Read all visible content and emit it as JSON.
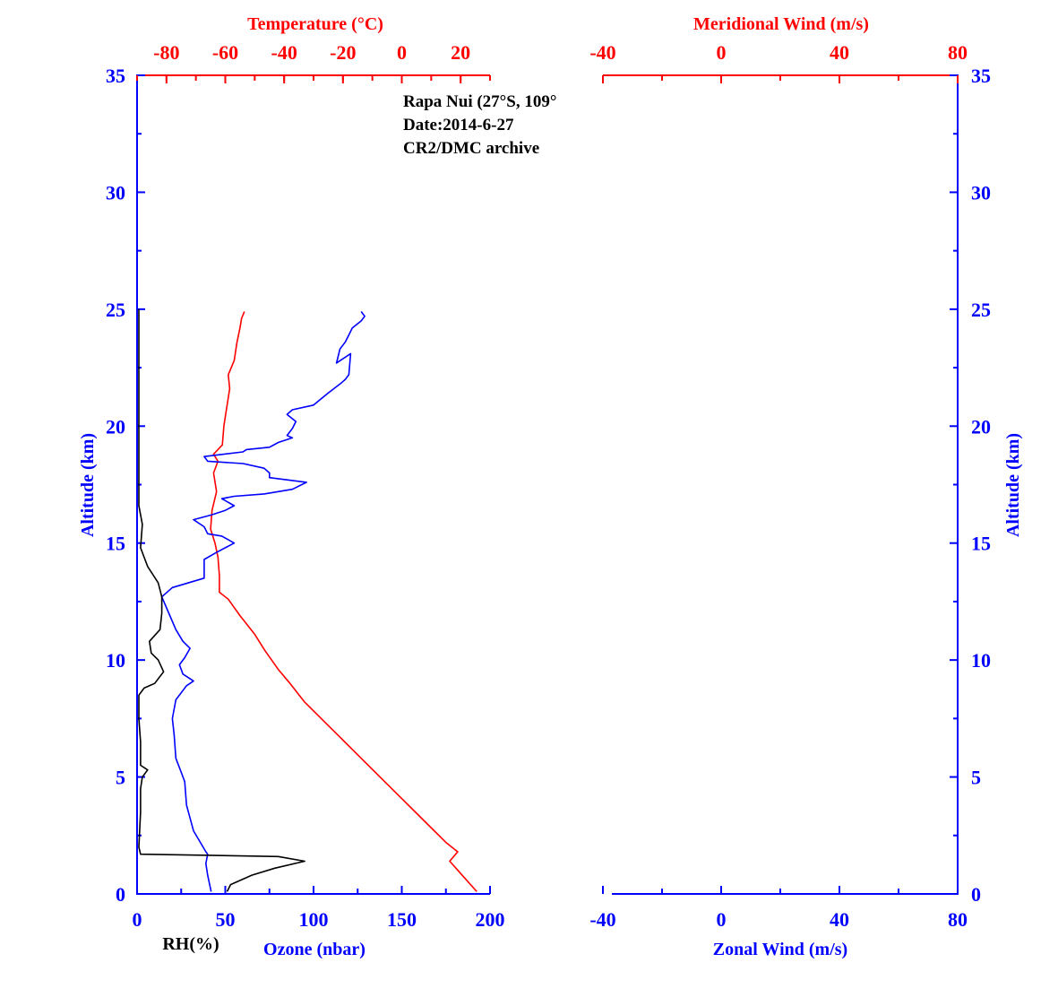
{
  "colors": {
    "blue": "#0000ff",
    "red": "#ff0000",
    "black": "#000000"
  },
  "annotations": [
    "Rapa Nui (27°S, 109°",
    "Date:2014-6-27",
    "CR2/DMC archive"
  ],
  "chart_data": [
    {
      "type": "line",
      "panel": "left",
      "ylabel": "Altitude (km)",
      "ylim": [
        0,
        35
      ],
      "yticks": [
        "0",
        "5",
        "10",
        "15",
        "20",
        "25",
        "30",
        "35"
      ],
      "bottom_axis": {
        "label": "Ozone (nbar)",
        "extra_label": "RH(%)",
        "xlim": [
          0,
          200
        ],
        "ticks": [
          "0",
          "50",
          "100",
          "150",
          "200"
        ]
      },
      "top_axis": {
        "label": "Temperature (°C)",
        "xlim": [
          -90,
          30
        ],
        "ticks": [
          "-80",
          "-60",
          "-40",
          "-20",
          "0",
          "20"
        ]
      },
      "series": [
        {
          "name": "Temperature",
          "axis": "top",
          "color": "red",
          "points": [
            [
              25.5,
              0.1
            ],
            [
              16.3,
              1.4
            ],
            [
              19.0,
              1.8
            ],
            [
              15.0,
              2.2
            ],
            [
              7.0,
              3.2
            ],
            [
              -1.0,
              4.2
            ],
            [
              -9.0,
              5.2
            ],
            [
              -17.0,
              6.2
            ],
            [
              -25.0,
              7.2
            ],
            [
              -33.0,
              8.2
            ],
            [
              -38.0,
              9.0
            ],
            [
              -42.0,
              9.6
            ],
            [
              -46.5,
              10.4
            ],
            [
              -50.0,
              11.1
            ],
            [
              -55.0,
              11.9
            ],
            [
              -59.0,
              12.6
            ],
            [
              -62.0,
              12.9
            ],
            [
              -62.0,
              13.6
            ],
            [
              -62.5,
              14.4
            ],
            [
              -63.5,
              15.0
            ],
            [
              -65.0,
              15.6
            ],
            [
              -64.5,
              16.4
            ],
            [
              -63.0,
              17.2
            ],
            [
              -64.0,
              18.0
            ],
            [
              -62.5,
              18.5
            ],
            [
              -64.0,
              18.8
            ],
            [
              -61.0,
              19.2
            ],
            [
              -60.5,
              20.0
            ],
            [
              -59.5,
              20.8
            ],
            [
              -58.5,
              21.6
            ],
            [
              -59.0,
              22.2
            ],
            [
              -57.0,
              22.8
            ],
            [
              -56.0,
              23.6
            ],
            [
              -55.0,
              24.2
            ],
            [
              -54.5,
              24.6
            ],
            [
              -53.5,
              24.9
            ]
          ]
        },
        {
          "name": "Ozone",
          "axis": "bottom",
          "color": "blue",
          "points": [
            [
              42,
              0.1
            ],
            [
              40,
              0.8
            ],
            [
              39,
              1.3
            ],
            [
              40,
              1.7
            ],
            [
              39,
              1.8
            ],
            [
              32,
              2.7
            ],
            [
              28,
              3.8
            ],
            [
              27,
              4.8
            ],
            [
              25,
              5.2
            ],
            [
              22,
              5.8
            ],
            [
              21,
              6.8
            ],
            [
              20,
              7.5
            ],
            [
              22,
              8.3
            ],
            [
              28,
              8.9
            ],
            [
              32,
              9.1
            ],
            [
              26,
              9.4
            ],
            [
              24,
              9.8
            ],
            [
              27,
              10.1
            ],
            [
              30,
              10.5
            ],
            [
              26,
              10.8
            ],
            [
              22,
              11.3
            ],
            [
              18,
              12.0
            ],
            [
              14,
              12.7
            ],
            [
              20,
              13.1
            ],
            [
              38,
              13.5
            ],
            [
              38,
              14.3
            ],
            [
              45,
              14.6
            ],
            [
              55,
              15.0
            ],
            [
              48,
              15.3
            ],
            [
              40,
              15.4
            ],
            [
              38,
              15.7
            ],
            [
              32,
              16.0
            ],
            [
              42,
              16.2
            ],
            [
              50,
              16.4
            ],
            [
              55,
              16.6
            ],
            [
              48,
              16.9
            ],
            [
              55,
              17.0
            ],
            [
              72,
              17.1
            ],
            [
              88,
              17.3
            ],
            [
              96,
              17.6
            ],
            [
              75,
              17.8
            ],
            [
              75,
              18.0
            ],
            [
              72,
              18.2
            ],
            [
              60,
              18.4
            ],
            [
              40,
              18.5
            ],
            [
              38,
              18.7
            ],
            [
              60,
              18.9
            ],
            [
              62,
              19.0
            ],
            [
              75,
              19.1
            ],
            [
              80,
              19.3
            ],
            [
              88,
              19.5
            ],
            [
              85,
              19.6
            ],
            [
              88,
              19.9
            ],
            [
              90,
              20.2
            ],
            [
              85,
              20.5
            ],
            [
              88,
              20.7
            ],
            [
              100,
              20.9
            ],
            [
              108,
              21.4
            ],
            [
              115,
              21.8
            ],
            [
              118,
              22.0
            ],
            [
              120,
              22.2
            ],
            [
              121,
              23.1
            ],
            [
              113,
              22.7
            ],
            [
              115,
              23.3
            ],
            [
              118,
              23.6
            ],
            [
              120,
              23.9
            ],
            [
              122,
              24.2
            ],
            [
              127,
              24.5
            ],
            [
              129,
              24.7
            ],
            [
              127,
              24.9
            ]
          ]
        },
        {
          "name": "RH",
          "axis": "bottom",
          "color": "black",
          "points": [
            [
              51,
              0.1
            ],
            [
              53,
              0.4
            ],
            [
              65,
              0.8
            ],
            [
              78,
              1.1
            ],
            [
              95,
              1.4
            ],
            [
              80,
              1.6
            ],
            [
              2,
              1.7
            ],
            [
              1,
              2.0
            ],
            [
              2,
              3.5
            ],
            [
              2,
              4.5
            ],
            [
              3,
              5.0
            ],
            [
              6,
              5.3
            ],
            [
              2,
              5.5
            ],
            [
              2,
              6.5
            ],
            [
              1,
              7.5
            ],
            [
              1,
              8.5
            ],
            [
              4,
              8.8
            ],
            [
              10,
              9.0
            ],
            [
              15,
              9.5
            ],
            [
              12,
              10.0
            ],
            [
              8,
              10.3
            ],
            [
              7,
              10.8
            ],
            [
              13,
              11.3
            ],
            [
              14,
              12.0
            ],
            [
              14,
              12.7
            ],
            [
              12,
              13.3
            ],
            [
              6,
              14.0
            ],
            [
              2,
              14.8
            ],
            [
              3,
              15.8
            ],
            [
              1,
              16.6
            ],
            [
              1,
              18.0
            ],
            [
              1,
              25.0
            ]
          ]
        }
      ]
    },
    {
      "type": "line",
      "panel": "right",
      "ylabel": "Altitude (km)",
      "ylim": [
        0,
        35
      ],
      "yticks": [
        "0",
        "5",
        "10",
        "15",
        "20",
        "25",
        "30",
        "35"
      ],
      "bottom_axis": {
        "label": "Zonal Wind (m/s)",
        "xlim": [
          -40,
          80
        ],
        "ticks": [
          "-40",
          "0",
          "40",
          "80"
        ]
      },
      "top_axis": {
        "label": "Meridional Wind (m/s)",
        "xlim": [
          -40,
          80
        ],
        "ticks": [
          "-40",
          "0",
          "40",
          "80"
        ]
      },
      "series": []
    }
  ]
}
